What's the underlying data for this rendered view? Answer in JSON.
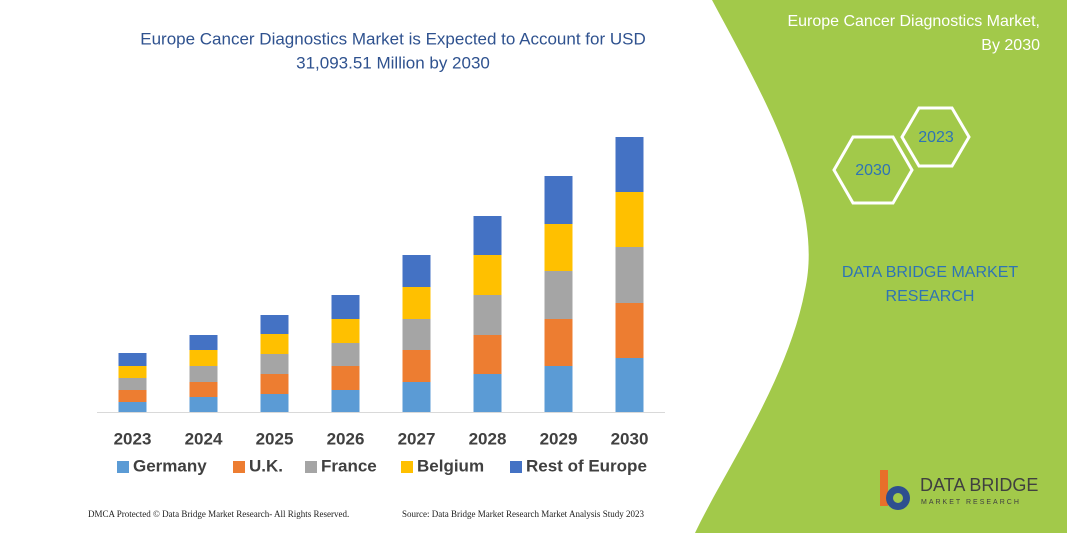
{
  "chart_data": {
    "type": "stacked-bar",
    "title": "Europe Cancer Diagnostics Market is Expected to Account for USD 31,093.51 Million by 2030",
    "categories": [
      "2023",
      "2024",
      "2025",
      "2026",
      "2027",
      "2028",
      "2029",
      "2030"
    ],
    "series": [
      {
        "name": "Germany",
        "color": "#5b9bd5",
        "values": [
          10,
          15,
          18,
          22,
          30,
          38,
          46,
          54
        ]
      },
      {
        "name": "U.K.",
        "color": "#ed7d31",
        "values": [
          12,
          15,
          20,
          24,
          32,
          39,
          47,
          55
        ]
      },
      {
        "name": "France",
        "color": "#a5a5a5",
        "values": [
          12,
          16,
          20,
          23,
          31,
          40,
          48,
          56
        ]
      },
      {
        "name": "Belgium",
        "color": "#ffc000",
        "values": [
          12,
          16,
          20,
          24,
          32,
          40,
          47,
          55
        ]
      },
      {
        "name": "Rest of Europe",
        "color": "#4472c4",
        "values": [
          13,
          15,
          19,
          24,
          32,
          39,
          48,
          55
        ]
      }
    ]
  },
  "panel": {
    "title_line1": "Europe Cancer Diagnostics Market,",
    "title_line2": "By 2030",
    "hex_a": "2023",
    "hex_b": "2030",
    "brand_line1": "DATA BRIDGE MARKET",
    "brand_line2": "RESEARCH"
  },
  "logo": {
    "name": "DATA BRIDGE",
    "tagline": "MARKET RESEARCH"
  },
  "footer": {
    "left": "DMCA Protected © Data Bridge Market Research- All Rights Reserved.",
    "right": "Source: Data Bridge Market Research  Market Analysis Study 2023"
  }
}
